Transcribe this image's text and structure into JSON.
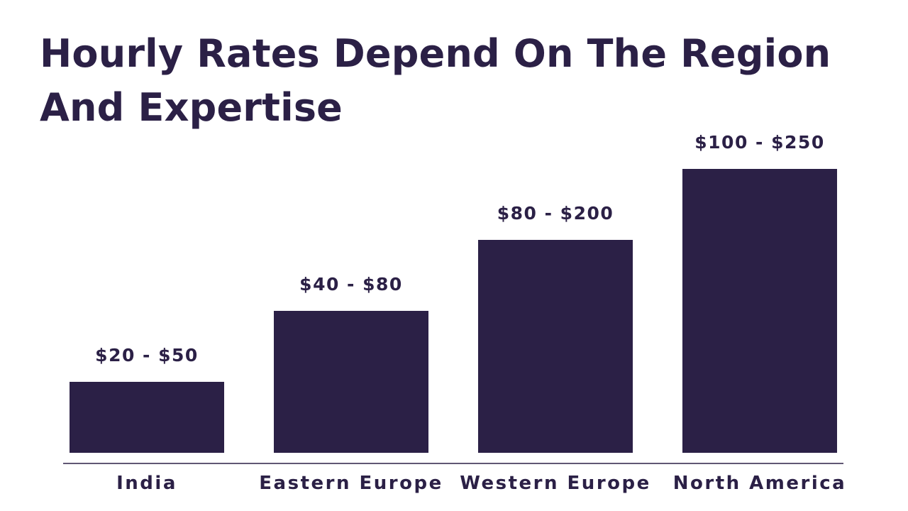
{
  "chart_data": {
    "type": "bar",
    "title": "Hourly Rates Depend On The Region And Expertise",
    "xlabel": "",
    "ylabel": "",
    "categories": [
      "India",
      "Eastern Europe",
      "Western Europe",
      "North America"
    ],
    "value_labels": [
      "$20 - $50",
      "$40 - $80",
      "$80 - $200",
      "$100 - $250"
    ],
    "ranges": [
      {
        "min": 20,
        "max": 50
      },
      {
        "min": 40,
        "max": 80
      },
      {
        "min": 80,
        "max": 200
      },
      {
        "min": 100,
        "max": 250
      }
    ],
    "bar_levels": [
      1,
      2,
      3,
      4
    ],
    "bar_levels_max": 4,
    "grid": false,
    "legend": "none",
    "color": "#2b2046"
  }
}
